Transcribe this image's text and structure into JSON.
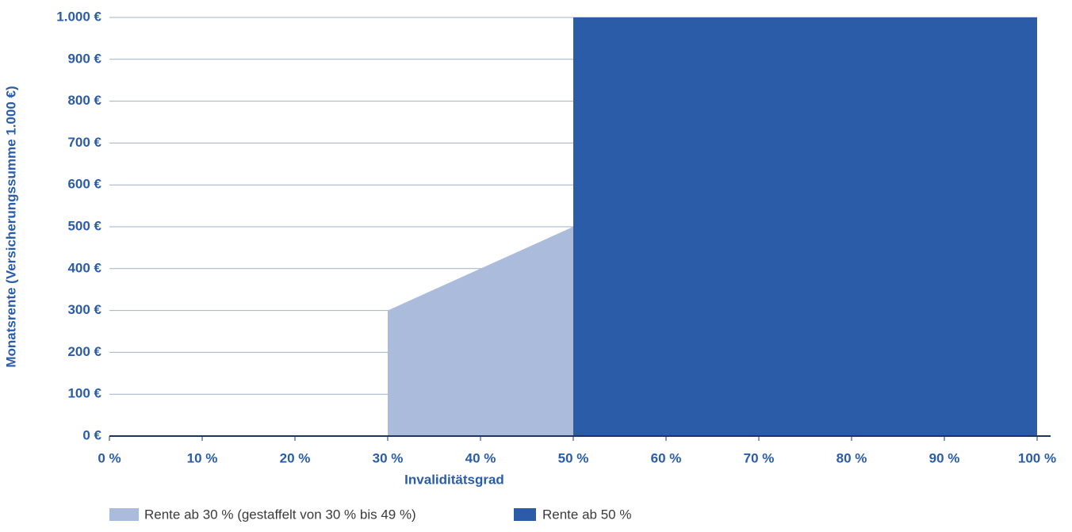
{
  "chart_data": {
    "type": "area",
    "x_label": "Invaliditätsgrad",
    "y_label": "Monatsrente (Versicherungssumme 1.000 €)",
    "x": [
      30,
      50,
      100
    ],
    "series": [
      {
        "name": "Rente ab 30 % (gestaffelt von 30 % bis 49 %)",
        "color": "#aabbdb",
        "values": [
          300,
          500,
          null
        ]
      },
      {
        "name": "Rente ab 50 %",
        "color": "#2b5ca8",
        "values": [
          null,
          1000,
          1000
        ]
      }
    ],
    "xlim": [
      0,
      100
    ],
    "xticks": [
      {
        "value": 0,
        "label": "0 %"
      },
      {
        "value": 10,
        "label": "10 %"
      },
      {
        "value": 20,
        "label": "20 %"
      },
      {
        "value": 30,
        "label": "30 %"
      },
      {
        "value": 40,
        "label": "40 %"
      },
      {
        "value": 50,
        "label": "50 %"
      },
      {
        "value": 60,
        "label": "60 %"
      },
      {
        "value": 70,
        "label": "70 %"
      },
      {
        "value": 80,
        "label": "80 %"
      },
      {
        "value": 90,
        "label": "90 %"
      },
      {
        "value": 100,
        "label": "100 %"
      }
    ],
    "ylim": [
      0,
      1000
    ],
    "yticks": [
      {
        "value": 0,
        "label": "0 €"
      },
      {
        "value": 100,
        "label": "100 €"
      },
      {
        "value": 200,
        "label": "200 €"
      },
      {
        "value": 300,
        "label": "300 €"
      },
      {
        "value": 400,
        "label": "400 €"
      },
      {
        "value": 500,
        "label": "500 €"
      },
      {
        "value": 600,
        "label": "600 €"
      },
      {
        "value": 700,
        "label": "700 €"
      },
      {
        "value": 800,
        "label": "800 €"
      },
      {
        "value": 900,
        "label": "900 €"
      },
      {
        "value": 1000,
        "label": "1.000 €"
      }
    ],
    "grid": true
  }
}
